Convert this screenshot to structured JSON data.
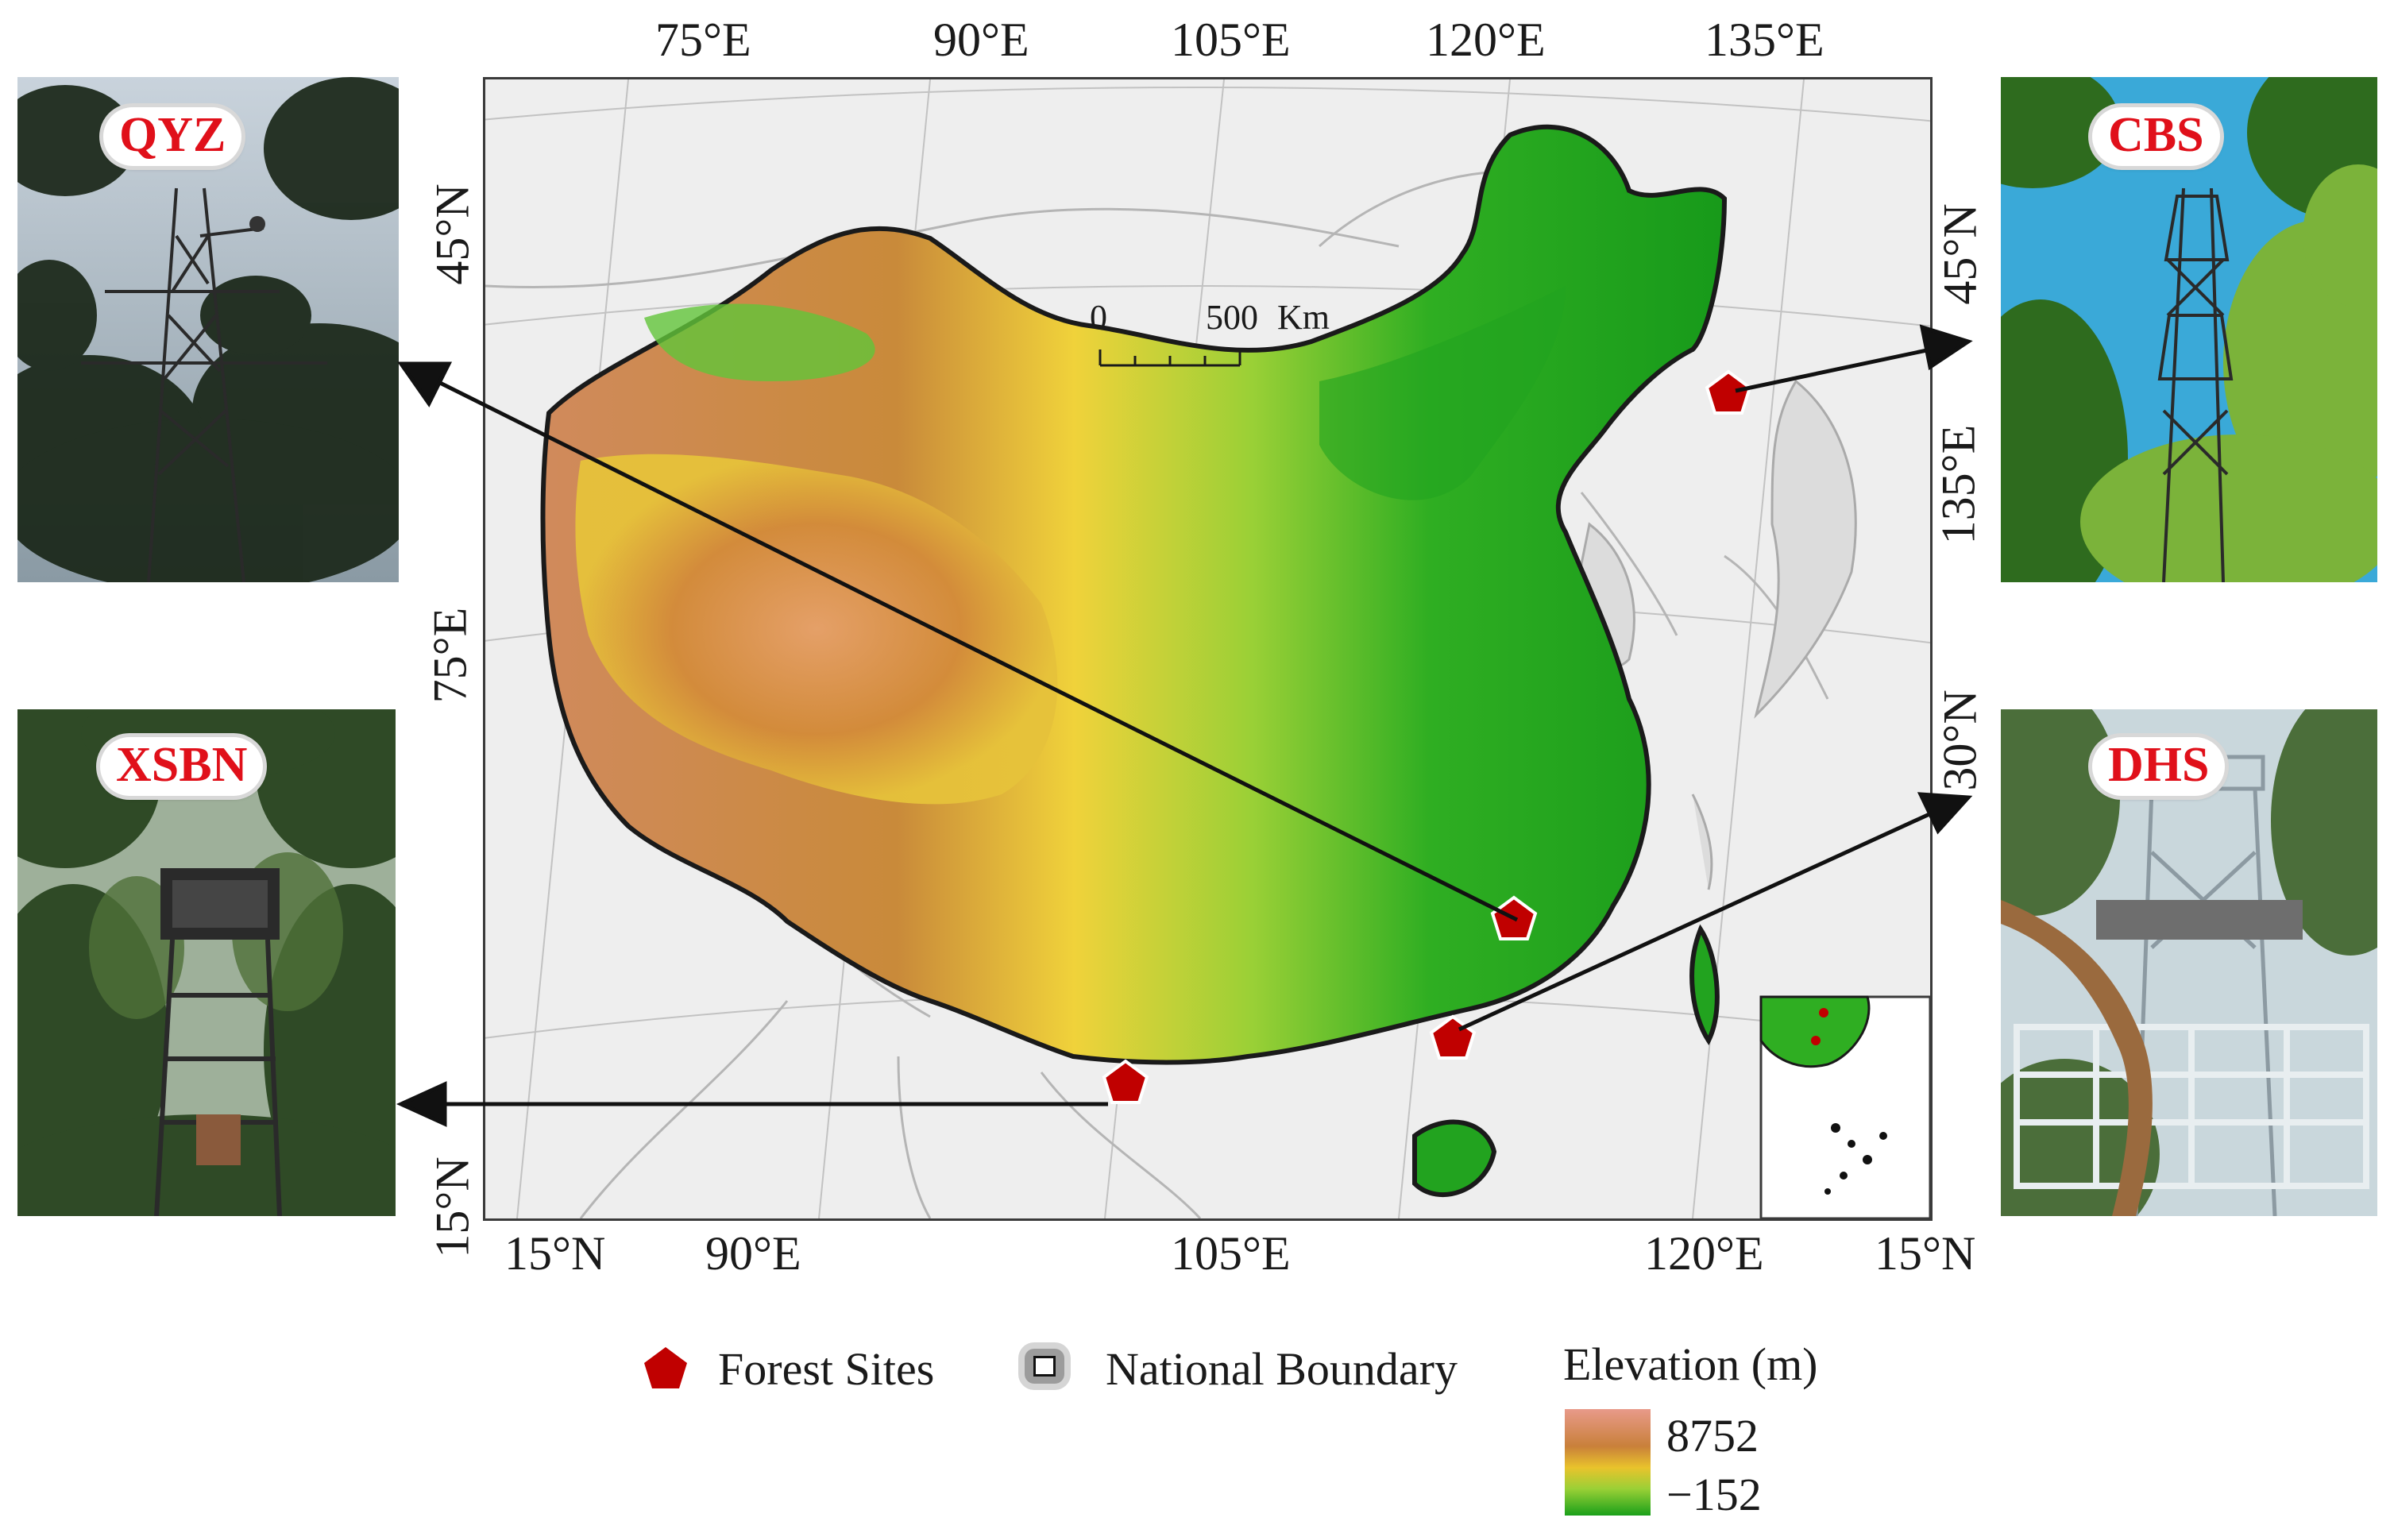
{
  "map": {
    "top_labels": [
      "75°E",
      "90°E",
      "105°E",
      "120°E",
      "135°E"
    ],
    "bottom_labels": [
      "15°N",
      "90°E",
      "105°E",
      "120°E",
      "15°N"
    ],
    "left_labels": [
      "45°N",
      "75°E",
      "15°N"
    ],
    "right_labels": [
      "45°N",
      "135°E",
      "30°N"
    ],
    "scale_bar": {
      "zero": "0",
      "max": "500",
      "unit": "Km"
    }
  },
  "sites": [
    {
      "code": "QYZ"
    },
    {
      "code": "CBS"
    },
    {
      "code": "XSBN"
    },
    {
      "code": "DHS"
    }
  ],
  "legend": {
    "forest_sites": "Forest Sites",
    "national_boundary": "National Boundary",
    "elevation_title": "Elevation (m)",
    "elevation_max": "8752",
    "elevation_min": "−152"
  },
  "colors": {
    "site_marker": "#c00000",
    "boundary": "#222222",
    "elevation_high": "#d98a5e",
    "elevation_mid": "#f2d22e",
    "elevation_low": "#17a01b"
  }
}
